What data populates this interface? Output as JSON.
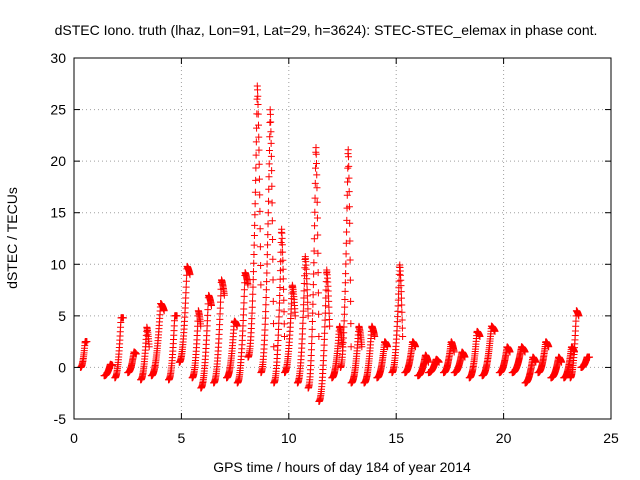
{
  "chart_data": {
    "type": "scatter",
    "title": "dSTEC Iono. truth (lhaz, Lon=91, Lat=29, h=3624): STEC-STEC_elemax in phase cont.",
    "xlabel": "GPS time / hours of day 184 of year 2014",
    "ylabel": "dSTEC  / TECUs",
    "xlim": [
      0,
      25
    ],
    "ylim": [
      -5,
      30
    ],
    "xticks": [
      0,
      5,
      10,
      15,
      20,
      25
    ],
    "yticks": [
      -5,
      0,
      5,
      10,
      15,
      20,
      25,
      30
    ],
    "grid": true,
    "marker": "+",
    "series": [
      {
        "color": "#ff0000",
        "arcs": [
          {
            "start": 0.3,
            "end": 0.6,
            "from": 0.0,
            "peak": 2.5,
            "to": 2.5
          },
          {
            "start": 1.4,
            "end": 1.8,
            "from": -0.8,
            "peak": 0.3,
            "to": 0.2
          },
          {
            "start": 1.9,
            "end": 2.3,
            "from": -1.0,
            "peak": 4.8,
            "to": 4.8
          },
          {
            "start": 2.5,
            "end": 2.9,
            "from": -0.5,
            "peak": 1.5,
            "to": 1.3
          },
          {
            "start": 3.1,
            "end": 3.5,
            "from": -1.2,
            "peak": 3.9,
            "to": 2.0
          },
          {
            "start": 3.6,
            "end": 4.2,
            "from": -0.8,
            "peak": 6.2,
            "to": 5.5
          },
          {
            "start": 4.4,
            "end": 4.8,
            "from": -1.2,
            "peak": 5.0,
            "to": 5.0
          },
          {
            "start": 4.9,
            "end": 5.4,
            "from": 0.5,
            "peak": 9.8,
            "to": 9.0
          },
          {
            "start": 5.5,
            "end": 5.9,
            "from": -1.0,
            "peak": 5.5,
            "to": 4.0
          },
          {
            "start": 5.9,
            "end": 6.4,
            "from": -2.0,
            "peak": 7.0,
            "to": 6.0
          },
          {
            "start": 6.5,
            "end": 7.0,
            "from": -1.5,
            "peak": 8.5,
            "to": 7.0
          },
          {
            "start": 7.1,
            "end": 7.6,
            "from": -1.0,
            "peak": 4.5,
            "to": 4.0
          },
          {
            "start": 7.6,
            "end": 8.1,
            "from": -1.5,
            "peak": 9.2,
            "to": 8.0
          },
          {
            "start": 8.1,
            "end": 8.7,
            "from": 1.0,
            "peak": 27.3,
            "to": 8.0
          },
          {
            "start": 8.7,
            "end": 9.3,
            "from": -0.5,
            "peak": 25.0,
            "to": 2.0
          },
          {
            "start": 9.3,
            "end": 9.8,
            "from": -1.5,
            "peak": 13.5,
            "to": 3.0
          },
          {
            "start": 9.8,
            "end": 10.3,
            "from": -0.5,
            "peak": 8.0,
            "to": 5.0
          },
          {
            "start": 10.4,
            "end": 10.9,
            "from": -1.5,
            "peak": 10.8,
            "to": 5.0
          },
          {
            "start": 10.9,
            "end": 11.4,
            "from": -2.0,
            "peak": 21.5,
            "to": 3.0
          },
          {
            "start": 11.4,
            "end": 11.9,
            "from": -3.3,
            "peak": 9.5,
            "to": 4.0
          },
          {
            "start": 12.0,
            "end": 12.5,
            "from": -1.0,
            "peak": 4.0,
            "to": 2.0
          },
          {
            "start": 12.4,
            "end": 12.9,
            "from": 0.0,
            "peak": 21.3,
            "to": 2.0
          },
          {
            "start": 12.9,
            "end": 13.4,
            "from": -1.5,
            "peak": 4.0,
            "to": 2.0
          },
          {
            "start": 13.5,
            "end": 14.0,
            "from": -1.5,
            "peak": 4.0,
            "to": 3.0
          },
          {
            "start": 14.1,
            "end": 14.6,
            "from": -1.0,
            "peak": 2.5,
            "to": 2.0
          },
          {
            "start": 14.8,
            "end": 15.3,
            "from": -0.5,
            "peak": 10.0,
            "to": 3.0
          },
          {
            "start": 15.4,
            "end": 15.9,
            "from": -0.5,
            "peak": 2.5,
            "to": 2.0
          },
          {
            "start": 16.0,
            "end": 16.5,
            "from": -0.8,
            "peak": 1.2,
            "to": 0.5
          },
          {
            "start": 16.5,
            "end": 17.0,
            "from": -0.5,
            "peak": 0.8,
            "to": 0.5
          },
          {
            "start": 17.2,
            "end": 17.7,
            "from": -0.5,
            "peak": 2.5,
            "to": 1.5
          },
          {
            "start": 17.7,
            "end": 18.2,
            "from": -0.5,
            "peak": 1.5,
            "to": 1.0
          },
          {
            "start": 18.4,
            "end": 18.9,
            "from": -1.0,
            "peak": 3.5,
            "to": 3.0
          },
          {
            "start": 19.0,
            "end": 19.6,
            "from": -0.8,
            "peak": 4.0,
            "to": 3.5
          },
          {
            "start": 19.8,
            "end": 20.3,
            "from": -0.5,
            "peak": 2.0,
            "to": 1.5
          },
          {
            "start": 20.4,
            "end": 21.0,
            "from": -0.5,
            "peak": 2.0,
            "to": 1.5
          },
          {
            "start": 21.0,
            "end": 21.5,
            "from": -1.5,
            "peak": 1.0,
            "to": 0.5
          },
          {
            "start": 21.6,
            "end": 22.1,
            "from": -0.5,
            "peak": 2.5,
            "to": 2.0
          },
          {
            "start": 22.2,
            "end": 22.7,
            "from": -1.0,
            "peak": 1.0,
            "to": 0.5
          },
          {
            "start": 22.8,
            "end": 23.3,
            "from": -1.0,
            "peak": 2.0,
            "to": 1.5
          },
          {
            "start": 23.1,
            "end": 23.5,
            "from": -1.0,
            "peak": 5.5,
            "to": 5.0
          },
          {
            "start": 23.6,
            "end": 24.0,
            "from": 0.0,
            "peak": 1.0,
            "to": 1.0
          }
        ]
      }
    ]
  }
}
